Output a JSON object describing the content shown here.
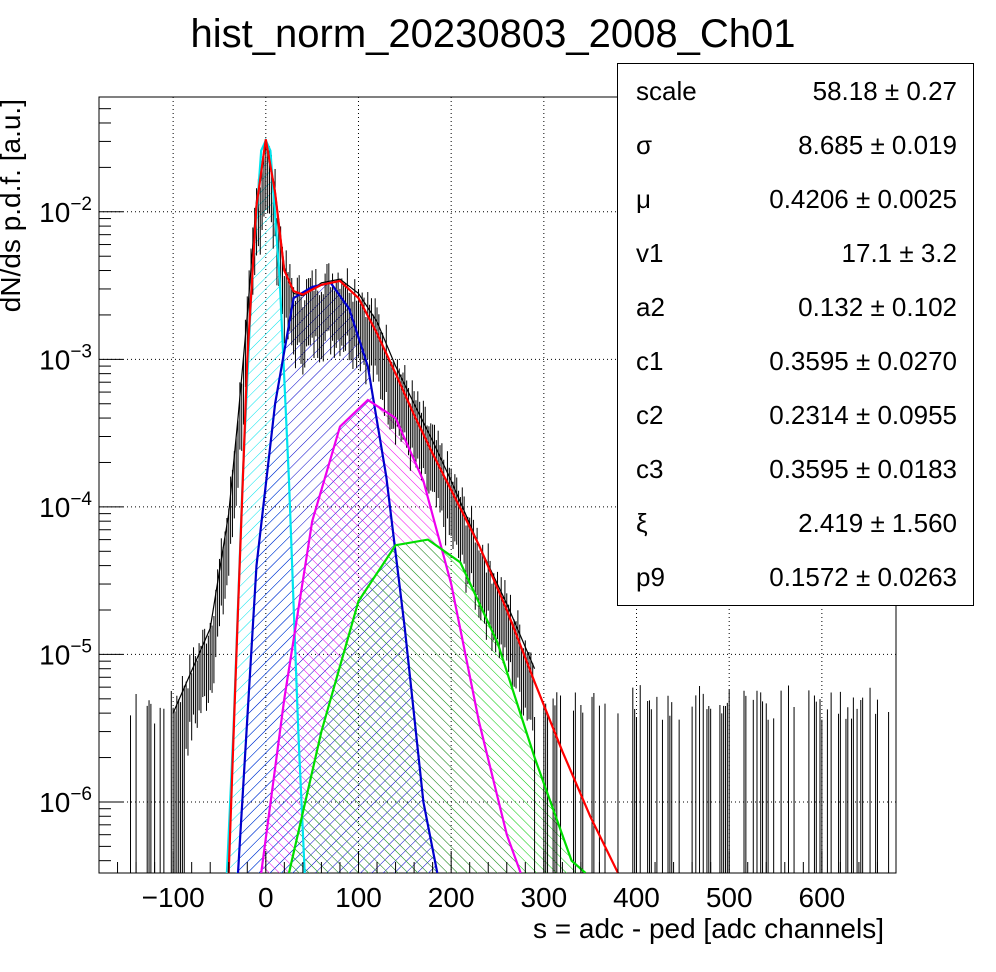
{
  "chart_data": {
    "type": "histogram",
    "title": "hist_norm_20230803_2008_Ch01",
    "xlabel": "s = adc - ped [adc channels]",
    "ylabel": "dN/ds p.d.f. [a.u.]",
    "xlim": [
      -180,
      680
    ],
    "ylim": [
      3.3e-07,
      0.06
    ],
    "yscale": "log",
    "grid": true,
    "xticks": [
      -100,
      0,
      100,
      200,
      300,
      400,
      500,
      600
    ],
    "xtick_labels": [
      "−100",
      "0",
      "100",
      "200",
      "300",
      "400",
      "500",
      "600"
    ],
    "yticks": [
      1e-06,
      1e-05,
      0.0001,
      0.001,
      0.01
    ],
    "ytick_labels": [
      {
        "base": "10",
        "exp": "−6"
      },
      {
        "base": "10",
        "exp": "−5"
      },
      {
        "base": "10",
        "exp": "−4"
      },
      {
        "base": "10",
        "exp": "−3"
      },
      {
        "base": "10",
        "exp": "−2"
      }
    ],
    "series": [
      {
        "color": "#000000",
        "x": [
          -100,
          -60,
          -40,
          -30,
          -20,
          -10,
          0,
          10,
          20,
          30,
          40,
          60,
          80,
          100,
          120,
          140,
          160,
          180,
          200,
          230,
          260,
          290
        ],
        "y": [
          4e-06,
          1.5e-05,
          9e-05,
          0.0004,
          0.002,
          0.012,
          0.031,
          0.014,
          0.0042,
          0.0028,
          0.0027,
          0.0033,
          0.0035,
          0.0028,
          0.0018,
          0.0009,
          0.0005,
          0.00028,
          0.00015,
          5.5e-05,
          2.2e-05,
          8e-06
        ]
      },
      {
        "color": "#ff0000",
        "x": [
          -40,
          -30,
          -20,
          -10,
          0,
          10,
          20,
          30,
          40,
          60,
          80,
          100,
          120,
          140,
          160,
          180,
          200,
          230,
          260,
          290,
          320,
          350,
          380
        ],
        "y": [
          3.3e-07,
          2e-05,
          0.001,
          0.011,
          0.031,
          0.0135,
          0.004,
          0.0029,
          0.00275,
          0.0032,
          0.0034,
          0.0026,
          0.0015,
          0.0008,
          0.00042,
          0.00023,
          0.00013,
          5.5e-05,
          2e-05,
          6.5e-06,
          2.2e-06,
          8e-07,
          3.3e-07
        ]
      },
      {
        "color": "#00e5ee",
        "x": [
          -42,
          -35,
          -25,
          -15,
          -5,
          0,
          5,
          15,
          25,
          35,
          42
        ],
        "y": [
          3.3e-07,
          3e-06,
          0.00015,
          0.0035,
          0.026,
          0.0305,
          0.026,
          0.0035,
          0.00015,
          3e-06,
          3.3e-07
        ]
      },
      {
        "color": "#0000cc",
        "x": [
          -30,
          -10,
          10,
          30,
          50,
          70,
          90,
          110,
          130,
          150,
          170,
          185
        ],
        "y": [
          3.3e-07,
          4e-05,
          0.0005,
          0.0026,
          0.0031,
          0.0033,
          0.0022,
          0.0009,
          0.00016,
          1.5e-05,
          1e-06,
          3.3e-07
        ]
      },
      {
        "color": "#ee00ee",
        "x": [
          -5,
          20,
          50,
          80,
          110,
          140,
          170,
          200,
          230,
          260,
          275
        ],
        "y": [
          3.3e-07,
          5e-06,
          8e-05,
          0.00035,
          0.00053,
          0.0004,
          0.00015,
          3e-05,
          3.5e-06,
          6e-07,
          3.3e-07
        ]
      },
      {
        "color": "#00dd00",
        "x": [
          25,
          60,
          100,
          140,
          175,
          210,
          250,
          290,
          330,
          345
        ],
        "y": [
          3.3e-07,
          3e-06,
          2.3e-05,
          5.5e-05,
          6e-05,
          4.2e-05,
          1.2e-05,
          2e-06,
          4e-07,
          3.3e-07
        ]
      }
    ]
  },
  "stats": [
    {
      "name": "scale",
      "value": "58.18 ± 0.27"
    },
    {
      "name": "σ",
      "value": "8.685 ± 0.019"
    },
    {
      "name": "μ",
      "value": "0.4206 ± 0.0025"
    },
    {
      "name": "v1",
      "value": "17.1 ± 3.2"
    },
    {
      "name": "a2",
      "value": "0.132 ± 0.102"
    },
    {
      "name": "c1",
      "value": "0.3595 ± 0.0270"
    },
    {
      "name": "c2",
      "value": "0.2314 ± 0.0955"
    },
    {
      "name": "c3",
      "value": "0.3595 ± 0.0183"
    },
    {
      "name": "ξ",
      "value": "2.419 ± 1.560"
    },
    {
      "name": "p9",
      "value": "0.1572 ± 0.0263"
    }
  ]
}
